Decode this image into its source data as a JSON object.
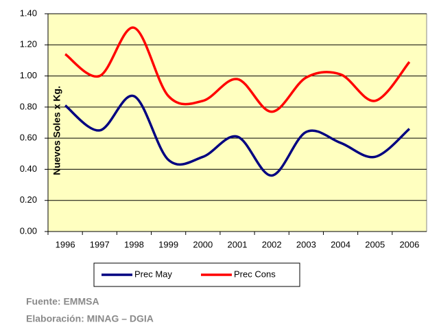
{
  "chart_data": {
    "type": "line",
    "y_label": "Nuevos Soles x Kg.",
    "categories": [
      "1996",
      "1997",
      "1998",
      "1999",
      "2000",
      "2001",
      "2002",
      "2003",
      "2004",
      "2005",
      "2006"
    ],
    "series": [
      {
        "name": "Prec May",
        "color": "#000080",
        "values": [
          0.81,
          0.65,
          0.87,
          0.46,
          0.48,
          0.61,
          0.36,
          0.64,
          0.57,
          0.48,
          0.66
        ]
      },
      {
        "name": "Prec Cons",
        "color": "#ff0000",
        "values": [
          1.14,
          1.0,
          1.31,
          0.87,
          0.84,
          0.98,
          0.77,
          0.99,
          1.01,
          0.84,
          1.09
        ]
      }
    ],
    "ylim": [
      0,
      1.4
    ],
    "yticks": [
      {
        "value": 0,
        "label": "0.00"
      },
      {
        "value": 0.2,
        "label": "0.20"
      },
      {
        "value": 0.4,
        "label": "0.40"
      },
      {
        "value": 0.6,
        "label": "0.60"
      },
      {
        "value": 0.8,
        "label": "0.80"
      },
      {
        "value": 1.0,
        "label": "1.00"
      },
      {
        "value": 1.2,
        "label": "1.20"
      },
      {
        "value": 1.4,
        "label": "1.40"
      }
    ],
    "grid": true,
    "plot_background": "#ffffc0",
    "notes": [
      "Fuente: EMMSA",
      "Elaboración: MINAG – DGIA"
    ]
  }
}
